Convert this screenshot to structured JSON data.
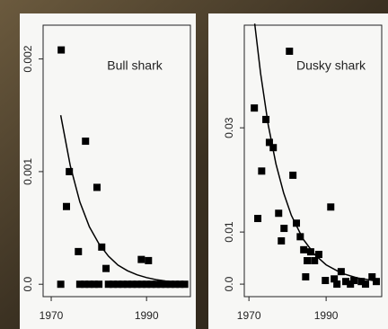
{
  "chart_data": [
    {
      "type": "scatter",
      "title": "Bull shark",
      "xlim": [
        1968.3,
        1999.2
      ],
      "ylim": [
        -0.00011,
        0.0023
      ],
      "xticks": [
        1970,
        1990
      ],
      "yticks": [
        {
          "value": 0,
          "label": "0.0"
        },
        0.001,
        0.002
      ],
      "series": [
        {
          "color": "#000000",
          "marker": "square",
          "x": [
            1972.1,
            1973.8,
            1973.2,
            1977.2,
            1979.6,
            1975.7,
            1980.6,
            1981.5,
            1988.9,
            1990.4,
            1972,
            1976,
            1977,
            1978,
            1979,
            1980,
            1982,
            1983,
            1984,
            1985,
            1986,
            1987,
            1988,
            1989,
            1990,
            1991,
            1992,
            1993,
            1994,
            1995,
            1996,
            1997,
            1998
          ],
          "values": [
            0.00208,
            0.001,
            0.00069,
            0.00127,
            0.00086,
            0.00029,
            0.00033,
            0.00014,
            0.00022,
            0.00021,
            0,
            0,
            0,
            0,
            0,
            0,
            0,
            0,
            0,
            0,
            0,
            0,
            0,
            0,
            0,
            0,
            0,
            0,
            0,
            0,
            0,
            0,
            0
          ]
        },
        {
          "color": "#000000",
          "marker": "line",
          "x": [
            1972,
            1974,
            1976,
            1978,
            1980,
            1982,
            1984,
            1986,
            1988,
            1990,
            1992,
            1994,
            1996,
            1998
          ],
          "values": [
            0.0015,
            0.00105,
            0.00073,
            0.00051,
            0.00036,
            0.00025,
            0.00017,
            0.00012,
            8.4e-05,
            5.9e-05,
            4.1e-05,
            2.9e-05,
            2e-05,
            1.4e-05
          ]
        }
      ]
    },
    {
      "type": "scatter",
      "title": "Dusky shark",
      "xlim": [
        1968.8,
        2004.4
      ],
      "ylim": [
        -0.0024,
        0.0497
      ],
      "xticks": [
        1970,
        1990
      ],
      "yticks": [
        {
          "value": 0,
          "label": "0.0"
        },
        0.01,
        0.03
      ],
      "series": [
        {
          "color": "#000000",
          "marker": "square",
          "x": [
            1971.4,
            1974.4,
            1973.3,
            1972.3,
            1975.3,
            1976.3,
            1980.5,
            1981.4,
            1977.7,
            1979.1,
            1978.4,
            1982.3,
            1983.3,
            1984.2,
            1986.0,
            1987.0,
            1985.1,
            1988.1,
            1984.7,
            1991.2,
            1989.8,
            1992.1,
            1993.9,
            1995.1,
            1997.2,
            1999.1,
            2001.9,
            2003.0,
            1992.8,
            1996.3,
            2000.2
          ],
          "values": [
            0.0338,
            0.0316,
            0.0217,
            0.0126,
            0.0272,
            0.0262,
            0.0447,
            0.0209,
            0.0136,
            0.0107,
            0.0083,
            0.0117,
            0.0091,
            0.0066,
            0.0062,
            0.0045,
            0.0045,
            0.0057,
            0.0014,
            0.0148,
            0.0007,
            0.001,
            0.0024,
            0.0005,
            0.0007,
            0.0005,
            0.0014,
            0.0005,
            0,
            0,
            0
          ]
        },
        {
          "color": "#000000",
          "marker": "line",
          "x": [
            1971.5,
            1973,
            1975,
            1977,
            1979,
            1981,
            1984,
            1987,
            1990,
            1994,
            1998,
            2003
          ],
          "values": [
            0.05,
            0.0405,
            0.0306,
            0.0231,
            0.0175,
            0.0132,
            0.0087,
            0.0057,
            0.0037,
            0.0021,
            0.0012,
            0.0006
          ]
        }
      ]
    }
  ]
}
